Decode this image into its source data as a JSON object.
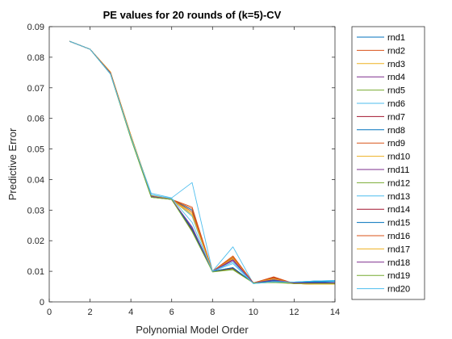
{
  "chart_data": {
    "type": "line",
    "title": "PE values for 20 rounds of (k=5)-CV",
    "xlabel": "Polynomial Model Order",
    "ylabel": "Predictive Error",
    "xlim": [
      0,
      14
    ],
    "ylim": [
      0,
      0.09
    ],
    "xticks": [
      0,
      2,
      4,
      6,
      8,
      10,
      12,
      14
    ],
    "yticks": [
      0,
      0.01,
      0.02,
      0.03,
      0.04,
      0.05,
      0.06,
      0.07,
      0.08,
      0.09
    ],
    "xtick_labels": [
      "0",
      "2",
      "4",
      "6",
      "8",
      "10",
      "12",
      "14"
    ],
    "ytick_labels": [
      "0",
      "0.01",
      "0.02",
      "0.03",
      "0.04",
      "0.05",
      "0.06",
      "0.07",
      "0.08",
      "0.09"
    ],
    "grid": false,
    "legend_position": "outside-right",
    "x": [
      1,
      2,
      3,
      4,
      5,
      6,
      7,
      8,
      9,
      10,
      11,
      12,
      13,
      14
    ],
    "series": [
      {
        "name": "rnd1",
        "color": "#0072BD",
        "values": [
          0.0852,
          0.0826,
          0.075,
          0.054,
          0.0345,
          0.0335,
          0.03,
          0.01,
          0.0145,
          0.0062,
          0.0075,
          0.0062,
          0.0065,
          0.0062
        ]
      },
      {
        "name": "rnd2",
        "color": "#D95319",
        "values": [
          0.0852,
          0.0826,
          0.075,
          0.0545,
          0.0345,
          0.0335,
          0.0305,
          0.01,
          0.015,
          0.0062,
          0.008,
          0.006,
          0.006,
          0.006
        ]
      },
      {
        "name": "rnd3",
        "color": "#EDB120",
        "values": [
          0.0852,
          0.0826,
          0.0752,
          0.0545,
          0.035,
          0.0335,
          0.029,
          0.01,
          0.0148,
          0.0062,
          0.0078,
          0.006,
          0.0058,
          0.0058
        ]
      },
      {
        "name": "rnd4",
        "color": "#7E2F8E",
        "values": [
          0.0852,
          0.0826,
          0.0748,
          0.054,
          0.0345,
          0.0335,
          0.024,
          0.01,
          0.011,
          0.0062,
          0.0068,
          0.0062,
          0.0062,
          0.0062
        ]
      },
      {
        "name": "rnd5",
        "color": "#77AC30",
        "values": [
          0.0852,
          0.0826,
          0.0745,
          0.0535,
          0.0342,
          0.0335,
          0.023,
          0.01,
          0.0108,
          0.0062,
          0.0065,
          0.006,
          0.006,
          0.006
        ]
      },
      {
        "name": "rnd6",
        "color": "#4DBEEE",
        "values": [
          0.0852,
          0.0826,
          0.0745,
          0.054,
          0.0355,
          0.034,
          0.039,
          0.01,
          0.018,
          0.006,
          0.0065,
          0.0065,
          0.0068,
          0.007
        ]
      },
      {
        "name": "rnd7",
        "color": "#A2142F",
        "values": [
          0.0852,
          0.0826,
          0.0748,
          0.054,
          0.0345,
          0.0335,
          0.0235,
          0.01,
          0.011,
          0.0062,
          0.0075,
          0.006,
          0.006,
          0.006
        ]
      },
      {
        "name": "rnd8",
        "color": "#0072BD",
        "values": [
          0.0852,
          0.0826,
          0.0748,
          0.054,
          0.0345,
          0.0335,
          0.0235,
          0.01,
          0.0112,
          0.0062,
          0.007,
          0.0063,
          0.0068,
          0.0068
        ]
      },
      {
        "name": "rnd9",
        "color": "#D95319",
        "values": [
          0.0852,
          0.0826,
          0.075,
          0.0545,
          0.0348,
          0.0335,
          0.031,
          0.01,
          0.015,
          0.0062,
          0.0082,
          0.006,
          0.0058,
          0.0058
        ]
      },
      {
        "name": "rnd10",
        "color": "#EDB120",
        "values": [
          0.0852,
          0.0826,
          0.075,
          0.0545,
          0.0348,
          0.0335,
          0.028,
          0.01,
          0.014,
          0.0062,
          0.0075,
          0.006,
          0.0058,
          0.0058
        ]
      },
      {
        "name": "rnd11",
        "color": "#7E2F8E",
        "values": [
          0.0852,
          0.0826,
          0.0748,
          0.054,
          0.0345,
          0.0335,
          0.024,
          0.01,
          0.0135,
          0.0062,
          0.007,
          0.0062,
          0.0062,
          0.0062
        ]
      },
      {
        "name": "rnd12",
        "color": "#77AC30",
        "values": [
          0.0852,
          0.0826,
          0.0745,
          0.0535,
          0.0342,
          0.0335,
          0.0232,
          0.01,
          0.0105,
          0.0062,
          0.0065,
          0.006,
          0.006,
          0.006
        ]
      },
      {
        "name": "rnd13",
        "color": "#4DBEEE",
        "values": [
          0.0852,
          0.0826,
          0.0745,
          0.054,
          0.035,
          0.0338,
          0.028,
          0.01,
          0.013,
          0.006,
          0.0065,
          0.0065,
          0.0068,
          0.007
        ]
      },
      {
        "name": "rnd14",
        "color": "#A2142F",
        "values": [
          0.0852,
          0.0826,
          0.0748,
          0.054,
          0.0345,
          0.0335,
          0.0235,
          0.01,
          0.011,
          0.0062,
          0.0078,
          0.006,
          0.006,
          0.006
        ]
      },
      {
        "name": "rnd15",
        "color": "#0072BD",
        "values": [
          0.0852,
          0.0826,
          0.0748,
          0.054,
          0.0345,
          0.0335,
          0.0238,
          0.01,
          0.0112,
          0.0062,
          0.007,
          0.0063,
          0.0066,
          0.0066
        ]
      },
      {
        "name": "rnd16",
        "color": "#D95319",
        "values": [
          0.0852,
          0.0826,
          0.075,
          0.0545,
          0.0348,
          0.0335,
          0.0295,
          0.01,
          0.0145,
          0.0062,
          0.008,
          0.006,
          0.0058,
          0.0058
        ]
      },
      {
        "name": "rnd17",
        "color": "#EDB120",
        "values": [
          0.0852,
          0.0826,
          0.075,
          0.0545,
          0.0348,
          0.0335,
          0.0285,
          0.01,
          0.0142,
          0.0062,
          0.0076,
          0.006,
          0.0058,
          0.0058
        ]
      },
      {
        "name": "rnd18",
        "color": "#7E2F8E",
        "values": [
          0.0852,
          0.0826,
          0.0748,
          0.054,
          0.0345,
          0.0335,
          0.0245,
          0.01,
          0.0138,
          0.0062,
          0.0072,
          0.0062,
          0.0062,
          0.0062
        ]
      },
      {
        "name": "rnd19",
        "color": "#77AC30",
        "values": [
          0.0852,
          0.0826,
          0.0745,
          0.0535,
          0.0342,
          0.0335,
          0.023,
          0.0098,
          0.0105,
          0.0062,
          0.0063,
          0.006,
          0.006,
          0.006
        ]
      },
      {
        "name": "rnd20",
        "color": "#4DBEEE",
        "values": [
          0.0852,
          0.0826,
          0.0745,
          0.054,
          0.035,
          0.0338,
          0.026,
          0.01,
          0.0125,
          0.006,
          0.0066,
          0.0065,
          0.0068,
          0.0068
        ]
      }
    ]
  }
}
